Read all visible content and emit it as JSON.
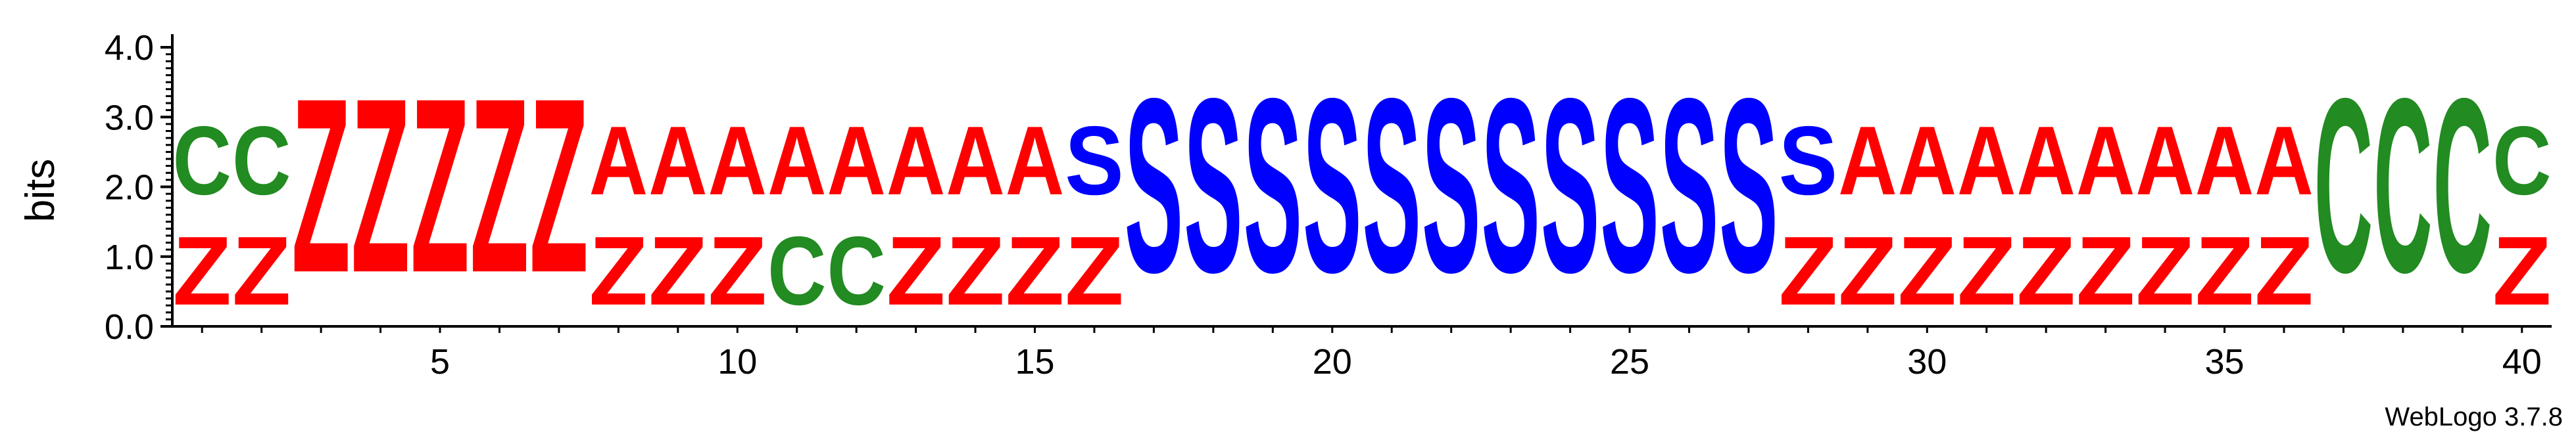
{
  "chart_data": {
    "type": "sequence-logo",
    "ylabel": "bits",
    "ylim": [
      0,
      4.0
    ],
    "yticks": [
      "0.0",
      "1.0",
      "2.0",
      "3.0",
      "4.0"
    ],
    "y_tick_values": [
      0,
      1,
      2,
      3,
      4
    ],
    "xticks": [
      "5",
      "10",
      "15",
      "20",
      "25",
      "30",
      "35",
      "40"
    ],
    "x_tick_values": [
      5,
      10,
      15,
      20,
      25,
      30,
      35,
      40
    ],
    "positions": 40,
    "colors": {
      "Z": "#ff0000",
      "A": "#ff0000",
      "S": "#0000ff",
      "C": "#228b22"
    },
    "columns": [
      {
        "pos": 1,
        "letters": [
          {
            "l": "Z",
            "h": 1.58
          },
          {
            "l": "C",
            "h": 1.58
          }
        ]
      },
      {
        "pos": 2,
        "letters": [
          {
            "l": "Z",
            "h": 1.58
          },
          {
            "l": "C",
            "h": 1.58
          }
        ]
      },
      {
        "pos": 3,
        "letters": [
          {
            "l": "Z",
            "h": 4.0
          }
        ]
      },
      {
        "pos": 4,
        "letters": [
          {
            "l": "Z",
            "h": 4.0
          }
        ]
      },
      {
        "pos": 5,
        "letters": [
          {
            "l": "Z",
            "h": 4.0
          }
        ]
      },
      {
        "pos": 6,
        "letters": [
          {
            "l": "Z",
            "h": 4.0
          }
        ]
      },
      {
        "pos": 7,
        "letters": [
          {
            "l": "Z",
            "h": 4.0
          }
        ]
      },
      {
        "pos": 8,
        "letters": [
          {
            "l": "Z",
            "h": 1.58
          },
          {
            "l": "A",
            "h": 1.58
          }
        ]
      },
      {
        "pos": 9,
        "letters": [
          {
            "l": "Z",
            "h": 1.58
          },
          {
            "l": "A",
            "h": 1.58
          }
        ]
      },
      {
        "pos": 10,
        "letters": [
          {
            "l": "Z",
            "h": 1.58
          },
          {
            "l": "A",
            "h": 1.58
          }
        ]
      },
      {
        "pos": 11,
        "letters": [
          {
            "l": "C",
            "h": 1.58
          },
          {
            "l": "A",
            "h": 1.58
          }
        ]
      },
      {
        "pos": 12,
        "letters": [
          {
            "l": "C",
            "h": 1.58
          },
          {
            "l": "A",
            "h": 1.58
          }
        ]
      },
      {
        "pos": 13,
        "letters": [
          {
            "l": "Z",
            "h": 1.58
          },
          {
            "l": "A",
            "h": 1.58
          }
        ]
      },
      {
        "pos": 14,
        "letters": [
          {
            "l": "Z",
            "h": 1.58
          },
          {
            "l": "A",
            "h": 1.58
          }
        ]
      },
      {
        "pos": 15,
        "letters": [
          {
            "l": "Z",
            "h": 1.58
          },
          {
            "l": "A",
            "h": 1.58
          }
        ]
      },
      {
        "pos": 16,
        "letters": [
          {
            "l": "Z",
            "h": 1.58
          },
          {
            "l": "S",
            "h": 1.58
          }
        ]
      },
      {
        "pos": 17,
        "letters": [
          {
            "l": "S",
            "h": 4.0
          }
        ]
      },
      {
        "pos": 18,
        "letters": [
          {
            "l": "S",
            "h": 4.0
          }
        ]
      },
      {
        "pos": 19,
        "letters": [
          {
            "l": "S",
            "h": 4.0
          }
        ]
      },
      {
        "pos": 20,
        "letters": [
          {
            "l": "S",
            "h": 4.0
          }
        ]
      },
      {
        "pos": 21,
        "letters": [
          {
            "l": "S",
            "h": 4.0
          }
        ]
      },
      {
        "pos": 22,
        "letters": [
          {
            "l": "S",
            "h": 4.0
          }
        ]
      },
      {
        "pos": 23,
        "letters": [
          {
            "l": "S",
            "h": 4.0
          }
        ]
      },
      {
        "pos": 24,
        "letters": [
          {
            "l": "S",
            "h": 4.0
          }
        ]
      },
      {
        "pos": 25,
        "letters": [
          {
            "l": "S",
            "h": 4.0
          }
        ]
      },
      {
        "pos": 26,
        "letters": [
          {
            "l": "S",
            "h": 4.0
          }
        ]
      },
      {
        "pos": 27,
        "letters": [
          {
            "l": "S",
            "h": 4.0
          }
        ]
      },
      {
        "pos": 28,
        "letters": [
          {
            "l": "Z",
            "h": 1.58
          },
          {
            "l": "S",
            "h": 1.58
          }
        ]
      },
      {
        "pos": 29,
        "letters": [
          {
            "l": "Z",
            "h": 1.58
          },
          {
            "l": "A",
            "h": 1.58
          }
        ]
      },
      {
        "pos": 30,
        "letters": [
          {
            "l": "Z",
            "h": 1.58
          },
          {
            "l": "A",
            "h": 1.58
          }
        ]
      },
      {
        "pos": 31,
        "letters": [
          {
            "l": "Z",
            "h": 1.58
          },
          {
            "l": "A",
            "h": 1.58
          }
        ]
      },
      {
        "pos": 32,
        "letters": [
          {
            "l": "Z",
            "h": 1.58
          },
          {
            "l": "A",
            "h": 1.58
          }
        ]
      },
      {
        "pos": 33,
        "letters": [
          {
            "l": "Z",
            "h": 1.58
          },
          {
            "l": "A",
            "h": 1.58
          }
        ]
      },
      {
        "pos": 34,
        "letters": [
          {
            "l": "Z",
            "h": 1.58
          },
          {
            "l": "A",
            "h": 1.58
          }
        ]
      },
      {
        "pos": 35,
        "letters": [
          {
            "l": "Z",
            "h": 1.58
          },
          {
            "l": "A",
            "h": 1.58
          }
        ]
      },
      {
        "pos": 36,
        "letters": [
          {
            "l": "Z",
            "h": 1.58
          },
          {
            "l": "A",
            "h": 1.58
          }
        ]
      },
      {
        "pos": 37,
        "letters": [
          {
            "l": "C",
            "h": 4.0
          }
        ]
      },
      {
        "pos": 38,
        "letters": [
          {
            "l": "C",
            "h": 4.0
          }
        ]
      },
      {
        "pos": 39,
        "letters": [
          {
            "l": "C",
            "h": 4.0
          }
        ]
      },
      {
        "pos": 40,
        "letters": [
          {
            "l": "Z",
            "h": 1.58
          },
          {
            "l": "C",
            "h": 1.58
          }
        ]
      }
    ],
    "footer": "WebLogo 3.7.8"
  }
}
